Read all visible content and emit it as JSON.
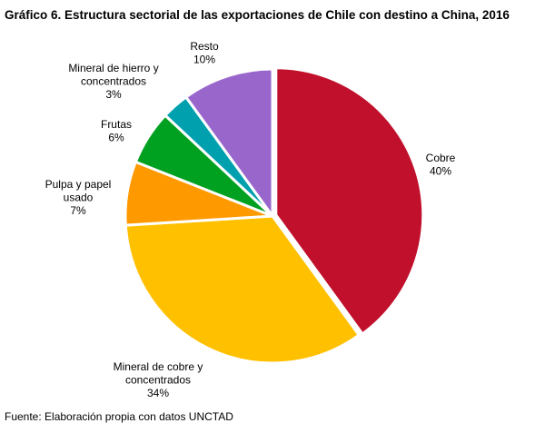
{
  "chart_data": {
    "type": "pie",
    "title": "Gráfico 6. Estructura sectorial de las exportaciones de Chile con destino a China, 2016",
    "slices": [
      {
        "label": [
          "Cobre"
        ],
        "value": 40,
        "value_label": "40%",
        "color": "#C0102C"
      },
      {
        "label": [
          "Mineral de cobre y",
          "concentrados"
        ],
        "value": 34,
        "value_label": "34%",
        "color": "#FFC000"
      },
      {
        "label": [
          "Pulpa y papel",
          "usado"
        ],
        "value": 7,
        "value_label": "7%",
        "color": "#FF9900"
      },
      {
        "label": [
          "Frutas"
        ],
        "value": 6,
        "value_label": "6%",
        "color": "#00A020"
      },
      {
        "label": [
          "Mineral de hierro y",
          "concentrados"
        ],
        "value": 3,
        "value_label": "3%",
        "color": "#00A0AE"
      },
      {
        "label": [
          "Resto"
        ],
        "value": 10,
        "value_label": "10%",
        "color": "#9966CC"
      }
    ],
    "start": "12 o'clock",
    "direction": "clockwise",
    "legend": "none"
  },
  "source": "Fuente: Elaboración propia con datos UNCTAD"
}
